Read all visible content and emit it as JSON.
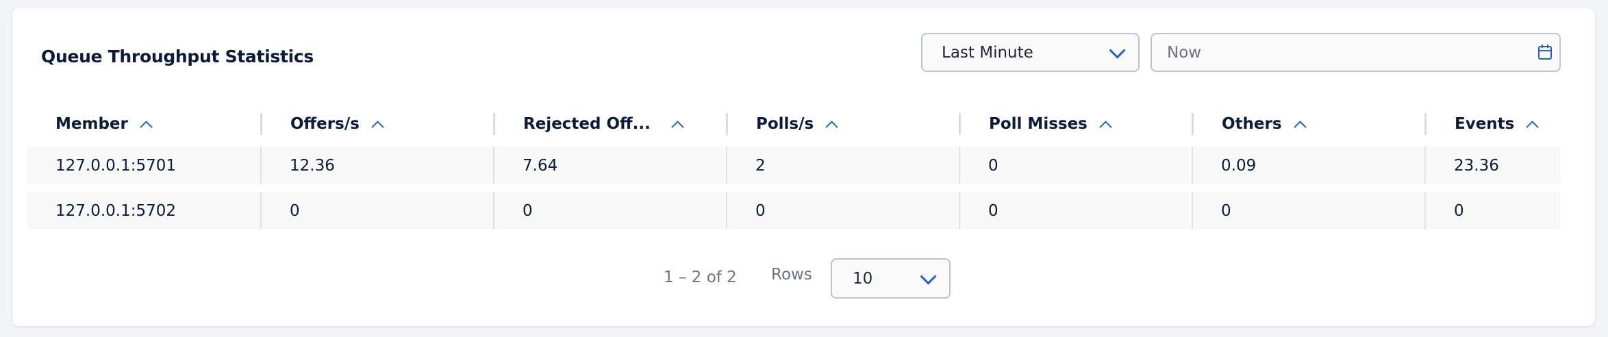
{
  "title": "Queue Throughput Statistics",
  "time_range": {
    "selected": "Last Minute",
    "icon": "chevron-down-icon"
  },
  "date_input": {
    "placeholder": "Now",
    "icon": "calendar-icon"
  },
  "table": {
    "columns": [
      "Member",
      "Offers/s",
      "Rejected Off...",
      "Polls/s",
      "Poll Misses",
      "Others",
      "Events"
    ],
    "sort_icon": "chevron-up-icon",
    "rows": [
      [
        "127.0.0.1:5701",
        "12.36",
        "7.64",
        "2",
        "0",
        "0.09",
        "23.36"
      ],
      [
        "127.0.0.1:5702",
        "0",
        "0",
        "0",
        "0",
        "0",
        "0"
      ]
    ]
  },
  "pagination": {
    "range": "1 – 2 of 2",
    "rows_label": "Rows",
    "rows_per_page": "10"
  },
  "colors": {
    "accent": "#2461c8",
    "text": "#0d1b3a",
    "muted": "#6a7280"
  }
}
